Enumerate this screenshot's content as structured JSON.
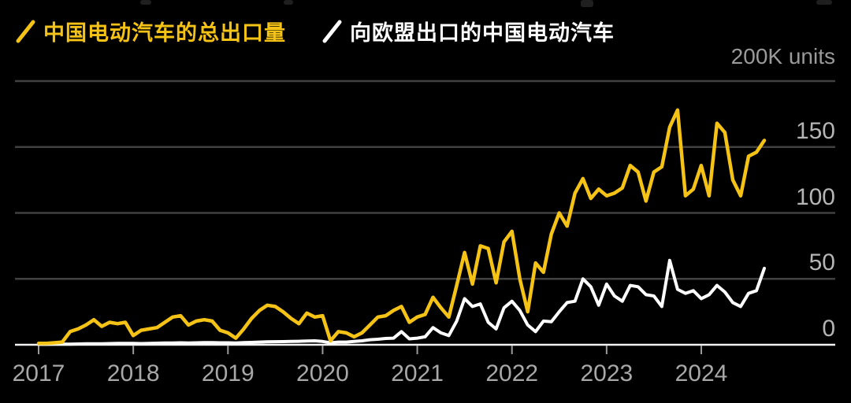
{
  "legend": {
    "items": [
      {
        "id": "total-exports",
        "label": "中国电动汽车的总出口量",
        "color": "#f5c315"
      },
      {
        "id": "eu-exports",
        "label": "向欧盟出口的中国电动汽车",
        "color": "#ffffff"
      }
    ]
  },
  "axis": {
    "units_label": "200K units",
    "y_tick_labels": [
      "150",
      "100",
      "50",
      "0"
    ],
    "y_tick_values": [
      150,
      100,
      50,
      0
    ],
    "x_tick_labels": [
      "2017",
      "2018",
      "2019",
      "2020",
      "2021",
      "2022",
      "2023",
      "2024"
    ]
  },
  "colors": {
    "background": "#000000",
    "accent_yellow": "#f5c315",
    "series_white": "#ffffff",
    "gridline": "#414141",
    "baseline": "#f2f2f2",
    "tick_label": "#b5b5b5",
    "year_label": "#a8a8a8",
    "units_label": "#9a9a9a"
  },
  "chart_data": {
    "type": "line",
    "title": "",
    "frequency": "monthly",
    "x_range": [
      "2017-01",
      "2024-09"
    ],
    "x_tick_labels": [
      "2017",
      "2018",
      "2019",
      "2020",
      "2021",
      "2022",
      "2023",
      "2024"
    ],
    "ylabel": "K units",
    "ylim": [
      0,
      200
    ],
    "y_gridlines": [
      200,
      150,
      100,
      50,
      0
    ],
    "legend_position": "top-left",
    "grid": "horizontal",
    "series": [
      {
        "name": "中国电动汽车的总出口量",
        "color": "#f5c315",
        "values": [
          1,
          1,
          1.5,
          2,
          10,
          12,
          15,
          19,
          14,
          17,
          16,
          17,
          7,
          11,
          12,
          13,
          17,
          21,
          22,
          15,
          18,
          19,
          18,
          11,
          9,
          5,
          12,
          20,
          26,
          30,
          29,
          25,
          20,
          16,
          24,
          21,
          22,
          3,
          10,
          9,
          6,
          9,
          15,
          21,
          22,
          26,
          29,
          17,
          21,
          23,
          36,
          28,
          21,
          45,
          70,
          46,
          75,
          73,
          47,
          78,
          86,
          50,
          25,
          62,
          55,
          84,
          100,
          90,
          115,
          126,
          111,
          118,
          113,
          115,
          119,
          136,
          131,
          109,
          131,
          135,
          165,
          178,
          113,
          118,
          136,
          113,
          168,
          161,
          125,
          113,
          143,
          146,
          155
        ]
      },
      {
        "name": "向欧盟出口的中国电动汽车",
        "color": "#ffffff",
        "values": [
          0.3,
          0.3,
          0.4,
          0.5,
          0.5,
          0.6,
          0.7,
          0.8,
          0.8,
          0.9,
          1,
          1,
          1,
          0.9,
          1.1,
          1.2,
          1.3,
          1.4,
          1.5,
          1.4,
          1.5,
          1.6,
          1.7,
          1.5,
          1.5,
          1.3,
          1.6,
          1.8,
          2,
          2.2,
          2.3,
          2.4,
          2.5,
          2.6,
          2.8,
          3,
          2.5,
          1.5,
          2,
          2,
          2.5,
          3,
          3.8,
          4.2,
          4.8,
          5,
          10,
          4.5,
          5,
          6,
          13,
          9,
          7,
          18,
          35,
          29,
          31,
          17,
          12,
          28,
          33,
          26,
          15,
          10,
          18,
          17.5,
          25,
          32,
          33,
          50,
          44,
          30,
          46,
          37,
          33,
          45,
          44,
          38,
          37,
          29,
          64,
          42,
          39,
          41,
          35,
          38,
          45,
          40,
          32,
          29,
          39,
          41,
          58
        ]
      }
    ]
  }
}
